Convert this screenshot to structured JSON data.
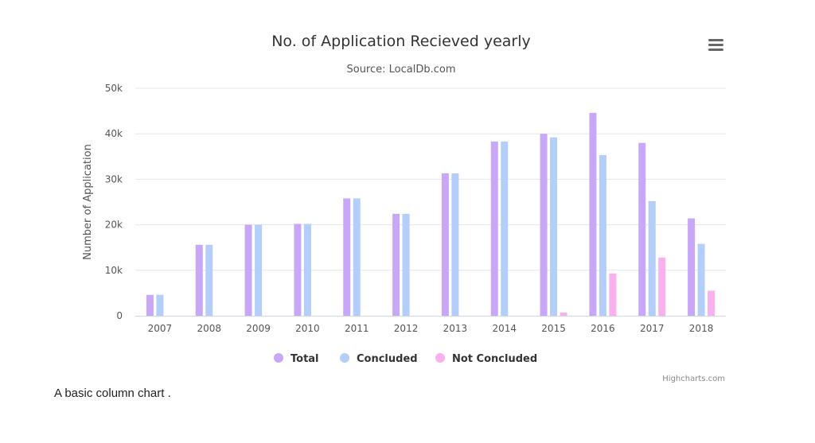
{
  "chart_data": {
    "type": "bar",
    "title": "No. of Application Recieved yearly",
    "subtitle": "Source: LocalDb.com",
    "xlabel": "",
    "ylabel": "Number of Application",
    "ylim": [
      0,
      50000
    ],
    "y_ticks": [
      "0",
      "10k",
      "20k",
      "30k",
      "40k",
      "50k"
    ],
    "y_tick_values": [
      0,
      10000,
      20000,
      30000,
      40000,
      50000
    ],
    "grid": true,
    "legend_position": "bottom-center",
    "categories": [
      "2007",
      "2008",
      "2009",
      "2010",
      "2011",
      "2012",
      "2013",
      "2014",
      "2015",
      "2016",
      "2017",
      "2018"
    ],
    "series": [
      {
        "name": "Total",
        "color": "#c9a7f7",
        "values": [
          4600,
          15600,
          20000,
          20200,
          25800,
          22400,
          31300,
          38300,
          40000,
          44600,
          38000,
          21400
        ]
      },
      {
        "name": "Concluded",
        "color": "#b3cef9",
        "values": [
          4600,
          15600,
          20000,
          20200,
          25800,
          22400,
          31300,
          38300,
          39200,
          35300,
          25200,
          15800
        ]
      },
      {
        "name": "Not Concluded",
        "color": "#f9b1ee",
        "values": [
          0,
          0,
          0,
          0,
          0,
          0,
          0,
          0,
          700,
          9300,
          12800,
          5500
        ]
      }
    ]
  },
  "credits": "Highcharts.com",
  "menu_icon": "hamburger-menu-icon",
  "caption": "A basic column chart ."
}
